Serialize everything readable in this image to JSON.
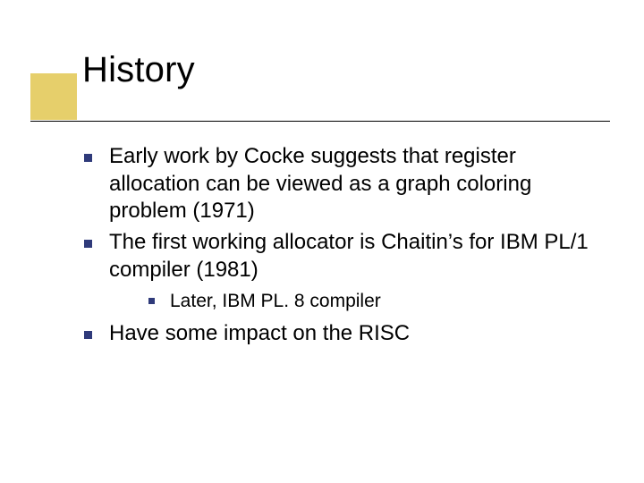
{
  "accent_color": "#e6cf6b",
  "bullet_color": "#2f3a7a",
  "rule_color": "#000000",
  "title": "History",
  "bullets": [
    {
      "text": "Early work by Cocke suggests that register allocation can be viewed as a graph coloring problem (1971)",
      "children": []
    },
    {
      "text": "The first working allocator is Chaitin’s for IBM PL/1 compiler (1981)",
      "children": [
        {
          "text": "Later, IBM PL. 8 compiler"
        }
      ]
    },
    {
      "text": "Have some impact on the RISC",
      "children": []
    }
  ]
}
